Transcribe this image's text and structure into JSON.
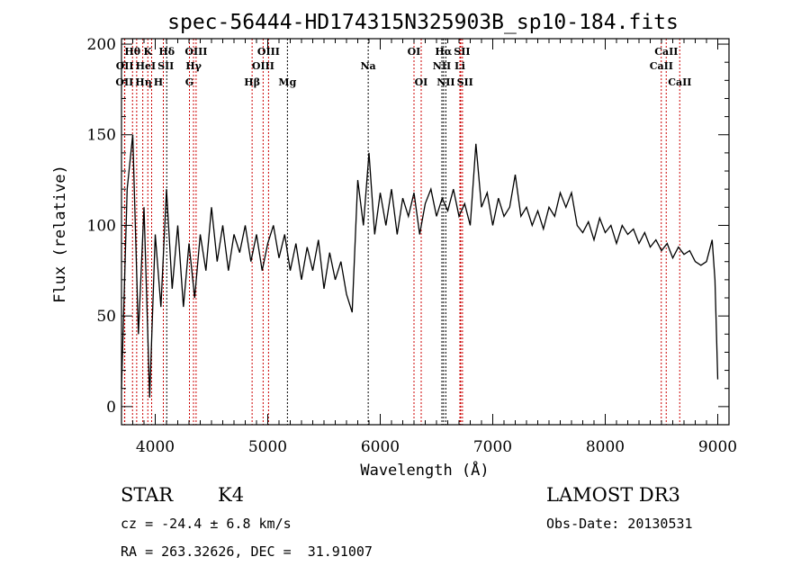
{
  "chart_data": {
    "type": "line",
    "title": "spec-56444-HD174315N325903B_sp10-184.fits",
    "xlabel": "Wavelength (Å)",
    "ylabel": "Flux (relative)",
    "xlim": [
      3700,
      9100
    ],
    "ylim": [
      -10,
      203
    ],
    "xticks": [
      4000,
      5000,
      6000,
      7000,
      8000,
      9000
    ],
    "yticks": [
      0,
      50,
      100,
      150,
      200
    ],
    "grid": false,
    "series": [
      {
        "name": "spectrum",
        "color": "#000000",
        "x": [
          3700,
          3750,
          3800,
          3850,
          3900,
          3950,
          4000,
          4050,
          4100,
          4150,
          4200,
          4250,
          4300,
          4350,
          4400,
          4450,
          4500,
          4550,
          4600,
          4650,
          4700,
          4750,
          4800,
          4850,
          4900,
          4950,
          5000,
          5050,
          5100,
          5150,
          5200,
          5250,
          5300,
          5350,
          5400,
          5450,
          5500,
          5550,
          5600,
          5650,
          5700,
          5750,
          5800,
          5850,
          5900,
          5950,
          6000,
          6050,
          6100,
          6150,
          6200,
          6250,
          6300,
          6350,
          6400,
          6450,
          6500,
          6550,
          6600,
          6650,
          6700,
          6750,
          6800,
          6850,
          6900,
          6950,
          7000,
          7050,
          7100,
          7150,
          7200,
          7250,
          7300,
          7350,
          7400,
          7450,
          7500,
          7550,
          7600,
          7650,
          7700,
          7750,
          7800,
          7850,
          7900,
          7950,
          8000,
          8050,
          8100,
          8150,
          8200,
          8250,
          8300,
          8350,
          8400,
          8450,
          8500,
          8550,
          8600,
          8650,
          8700,
          8750,
          8800,
          8850,
          8900,
          8950,
          8975,
          9000
        ],
        "y": [
          10,
          120,
          150,
          40,
          110,
          5,
          95,
          55,
          120,
          65,
          100,
          55,
          90,
          60,
          95,
          75,
          110,
          80,
          100,
          75,
          95,
          85,
          100,
          80,
          95,
          75,
          90,
          100,
          82,
          95,
          75,
          90,
          70,
          88,
          75,
          92,
          65,
          85,
          70,
          80,
          62,
          52,
          125,
          100,
          140,
          95,
          118,
          100,
          120,
          95,
          115,
          105,
          118,
          95,
          112,
          120,
          105,
          115,
          108,
          120,
          105,
          112,
          100,
          145,
          110,
          118,
          100,
          115,
          105,
          110,
          128,
          105,
          110,
          100,
          108,
          98,
          110,
          105,
          118,
          110,
          118,
          100,
          96,
          102,
          92,
          104,
          96,
          100,
          90,
          100,
          95,
          98,
          90,
          96,
          88,
          92,
          86,
          90,
          82,
          88,
          84,
          86,
          80,
          78,
          80,
          92,
          70,
          15
        ]
      }
    ],
    "line_markers": [
      {
        "name": "OII",
        "wavelength": 3727,
        "row": 3,
        "color": "#cc0000"
      },
      {
        "name": "OII",
        "wavelength": 3729,
        "row": 2,
        "color": "#cc0000"
      },
      {
        "name": "Hθ",
        "wavelength": 3798,
        "row": 1,
        "color": "#cc0000"
      },
      {
        "name": "Hη",
        "wavelength": 3835,
        "row": 3,
        "color": "#cc0000"
      },
      {
        "name": "HeI",
        "wavelength": 3889,
        "row": 2,
        "color": "#cc0000"
      },
      {
        "name": "K",
        "wavelength": 3934,
        "row": 1,
        "color": "#cc0000"
      },
      {
        "name": "H",
        "wavelength": 3968,
        "row": 3,
        "color": "#cc0000"
      },
      {
        "name": "SII",
        "wavelength": 4072,
        "row": 2,
        "color": "#cc0000"
      },
      {
        "name": "Hδ",
        "wavelength": 4102,
        "row": 1,
        "color": "#000000"
      },
      {
        "name": "G",
        "wavelength": 4304,
        "row": 3,
        "color": "#cc0000"
      },
      {
        "name": "Hγ",
        "wavelength": 4340,
        "row": 2,
        "color": "#cc0000"
      },
      {
        "name": "OIII",
        "wavelength": 4363,
        "row": 1,
        "color": "#cc0000"
      },
      {
        "name": "Hβ",
        "wavelength": 4861,
        "row": 3,
        "color": "#cc0000"
      },
      {
        "name": "OIII",
        "wavelength": 4959,
        "row": 2,
        "color": "#cc0000"
      },
      {
        "name": "OIII",
        "wavelength": 5007,
        "row": 1,
        "color": "#cc0000"
      },
      {
        "name": "Mg",
        "wavelength": 5175,
        "row": 3,
        "color": "#000000"
      },
      {
        "name": "Na",
        "wavelength": 5893,
        "row": 2,
        "color": "#000000"
      },
      {
        "name": "OI",
        "wavelength": 6300,
        "row": 1,
        "color": "#cc0000"
      },
      {
        "name": "OI",
        "wavelength": 6364,
        "row": 3,
        "color": "#cc0000"
      },
      {
        "name": "NII",
        "wavelength": 6548,
        "row": 2,
        "color": "#000000"
      },
      {
        "name": "Hα",
        "wavelength": 6563,
        "row": 1,
        "color": "#000000"
      },
      {
        "name": "NII",
        "wavelength": 6583,
        "row": 3,
        "color": "#000000"
      },
      {
        "name": "Li",
        "wavelength": 6708,
        "row": 2,
        "color": "#cc0000"
      },
      {
        "name": "SII",
        "wavelength": 6716,
        "row": 1,
        "color": "#cc0000"
      },
      {
        "name": "SII",
        "wavelength": 6731,
        "row": 3,
        "color": "#cc0000"
      },
      {
        "name": "CaII",
        "wavelength": 8498,
        "row": 2,
        "color": "#cc0000"
      },
      {
        "name": "CaII",
        "wavelength": 8542,
        "row": 1,
        "color": "#cc0000"
      },
      {
        "name": "CaII",
        "wavelength": 8662,
        "row": 3,
        "color": "#cc0000"
      }
    ]
  },
  "info": {
    "object_class": "STAR",
    "subclass": "K4",
    "redshift": "cz = -24.4 ± 6.8 km/s",
    "coords": "RA = 263.32626, DEC =  31.91007",
    "survey": "LAMOST DR3",
    "obs_date": "Obs-Date: 20130531"
  }
}
